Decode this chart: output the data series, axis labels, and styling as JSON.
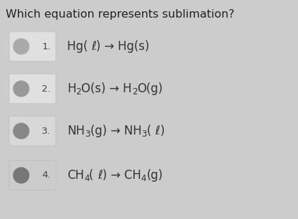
{
  "title": "Which equation represents sublimation?",
  "title_fontsize": 11.5,
  "title_color": "#222222",
  "background_color": "#cccccc",
  "options": [
    {
      "number": "1.",
      "latex": "Hg( $\\ell$ ) → Hg(s)",
      "parts": [
        {
          "text": "Hg( ",
          "style": "normal"
        },
        {
          "text": "ℓ",
          "style": "italic"
        },
        {
          "text": ") → Hg(s)",
          "style": "normal"
        }
      ],
      "circle_color": "#aaaaaa",
      "box_color": "#e0e0e0"
    },
    {
      "number": "2.",
      "parts": [
        {
          "text": "H",
          "style": "normal"
        },
        {
          "text": "2",
          "style": "sub"
        },
        {
          "text": "O(s) → H",
          "style": "normal"
        },
        {
          "text": "2",
          "style": "sub"
        },
        {
          "text": "O(g)",
          "style": "normal"
        }
      ],
      "circle_color": "#999999",
      "box_color": "#e0e0e0"
    },
    {
      "number": "3.",
      "parts": [
        {
          "text": "NH",
          "style": "normal"
        },
        {
          "text": "3",
          "style": "sub"
        },
        {
          "text": "(g) → NH",
          "style": "normal"
        },
        {
          "text": "3",
          "style": "sub"
        },
        {
          "text": "( ",
          "style": "normal"
        },
        {
          "text": "ℓ",
          "style": "italic"
        },
        {
          "text": ")",
          "style": "normal"
        }
      ],
      "circle_color": "#888888",
      "box_color": "#d8d8d8"
    },
    {
      "number": "4.",
      "parts": [
        {
          "text": "CH",
          "style": "normal"
        },
        {
          "text": "4",
          "style": "sub"
        },
        {
          "text": "( ",
          "style": "normal"
        },
        {
          "text": "ℓ",
          "style": "italic"
        },
        {
          "text": ") → CH",
          "style": "normal"
        },
        {
          "text": "4",
          "style": "sub"
        },
        {
          "text": "(g)",
          "style": "normal"
        }
      ],
      "circle_color": "#777777",
      "box_color": "#cccccc"
    }
  ],
  "option_fontsize": 12,
  "number_fontsize": 9.5
}
